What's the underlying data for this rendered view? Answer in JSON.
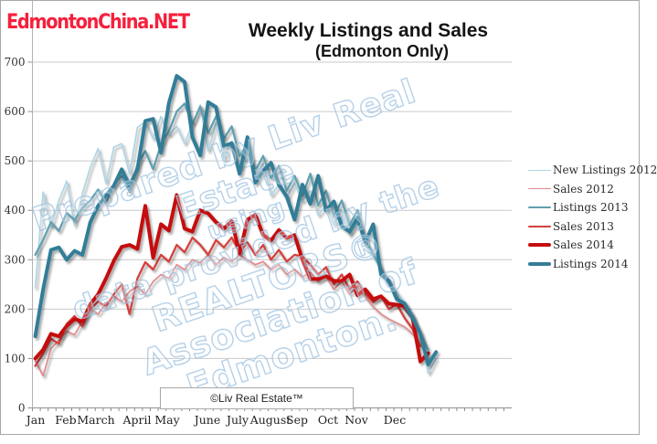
{
  "page": {
    "logo_text": "EdmontonChina.NET",
    "logo_color": "#f5203c"
  },
  "chart_data": {
    "type": "line",
    "title": "Weekly Listings and Sales",
    "subtitle": "(Edmonton Only)",
    "copyright_box": "©Liv Real Estate™",
    "watermark_lines": [
      "Prepared by Liv Real Estate",
      "using",
      "data provided by the",
      "REALTORS®",
      "Association of Edmonton."
    ],
    "x_unit": "week",
    "n_weeks": 52,
    "grid_color": "#cacaca",
    "axis_color": "#909090",
    "y_axis": {
      "min": 0,
      "max": 700,
      "tick_step": 100,
      "tick_labels": [
        "0",
        "100",
        "200",
        "300",
        "400",
        "500",
        "600",
        "700"
      ]
    },
    "x_axis": {
      "months": [
        {
          "label": "Jan",
          "x": 39
        },
        {
          "label": "Feb",
          "x": 72
        },
        {
          "label": "March",
          "x": 105
        },
        {
          "label": "April",
          "x": 150
        },
        {
          "label": "May",
          "x": 183
        },
        {
          "label": "June",
          "x": 227
        },
        {
          "label": "July",
          "x": 260
        },
        {
          "label": "August",
          "x": 296
        },
        {
          "label": "Sep",
          "x": 325
        },
        {
          "label": "Oct",
          "x": 359
        },
        {
          "label": "Nov",
          "x": 390
        },
        {
          "label": "Dec",
          "x": 432
        }
      ]
    },
    "legend_position": "right",
    "draw_order": [
      1,
      3,
      0,
      2,
      4,
      5
    ],
    "series": [
      {
        "name": "New Listings 2012",
        "color": "#aed6e4",
        "line_width": 1.7,
        "values": [
          243,
          437,
          367,
          420,
          459,
          369,
          434,
          487,
          525,
          455,
          528,
          535,
          474,
          568,
          579,
          545,
          590,
          552,
          570,
          535,
          575,
          613,
          520,
          578,
          505,
          540,
          484,
          515,
          462,
          495,
          430,
          452,
          424,
          455,
          418,
          440,
          390,
          410,
          370,
          400,
          350,
          375,
          330,
          307,
          280,
          258,
          234,
          214,
          188,
          148,
          70,
          100
        ]
      },
      {
        "name": "Sales 2012",
        "color": "#e2898c",
        "line_width": 1.7,
        "values": [
          95,
          65,
          120,
          137,
          155,
          148,
          176,
          200,
          190,
          212,
          226,
          215,
          236,
          246,
          230,
          256,
          270,
          262,
          290,
          280,
          300,
          294,
          310,
          290,
          305,
          296,
          310,
          300,
          290,
          296,
          280,
          290,
          270,
          281,
          265,
          275,
          255,
          266,
          240,
          256,
          230,
          246,
          224,
          205,
          190,
          180,
          172,
          164,
          150,
          128,
          null,
          null
        ]
      },
      {
        "name": "Listings 2013",
        "color": "#60a0b0",
        "line_width": 2.3,
        "values": [
          310,
          340,
          376,
          358,
          395,
          380,
          405,
          420,
          442,
          415,
          452,
          470,
          438,
          492,
          520,
          483,
          533,
          560,
          600,
          616,
          575,
          610,
          556,
          590,
          545,
          570,
          510,
          535,
          480,
          510,
          465,
          490,
          440,
          470,
          430,
          474,
          410,
          440,
          388,
          420,
          370,
          400,
          340,
          312,
          282,
          252,
          226,
          200,
          180,
          150,
          118,
          null
        ]
      },
      {
        "name": "Sales 2013",
        "color": "#d5413c",
        "line_width": 2.3,
        "values": [
          85,
          110,
          140,
          130,
          170,
          186,
          165,
          200,
          215,
          205,
          230,
          250,
          190,
          262,
          295,
          280,
          310,
          296,
          330,
          315,
          345,
          330,
          310,
          340,
          325,
          345,
          315,
          335,
          310,
          330,
          300,
          320,
          296,
          310,
          307,
          290,
          270,
          285,
          250,
          270,
          240,
          256,
          230,
          214,
          226,
          200,
          210,
          182,
          160,
          125,
          null,
          null
        ]
      },
      {
        "name": "Sales 2014",
        "color": "#c50d10",
        "line_width": 4,
        "values": [
          100,
          118,
          150,
          145,
          166,
          180,
          175,
          210,
          230,
          262,
          298,
          326,
          330,
          322,
          409,
          304,
          372,
          359,
          431,
          363,
          357,
          400,
          394,
          376,
          363,
          378,
          313,
          381,
          391,
          350,
          339,
          360,
          344,
          350,
          300,
          261,
          261,
          267,
          257,
          257,
          270,
          228,
          240,
          220,
          226,
          211,
          209,
          206,
          183,
          94,
          111,
          null
        ]
      },
      {
        "name": "Listings 2014",
        "color": "#337d97",
        "line_width": 4,
        "values": [
          145,
          240,
          320,
          325,
          300,
          318,
          310,
          376,
          409,
          430,
          450,
          483,
          450,
          483,
          581,
          585,
          517,
          617,
          672,
          660,
          548,
          511,
          619,
          609,
          530,
          536,
          474,
          548,
          456,
          480,
          496,
          452,
          428,
          381,
          452,
          413,
          470,
          400,
          418,
          368,
          357,
          385,
          335,
          372,
          270,
          257,
          220,
          211,
          183,
          150,
          88,
          113
        ]
      }
    ]
  }
}
